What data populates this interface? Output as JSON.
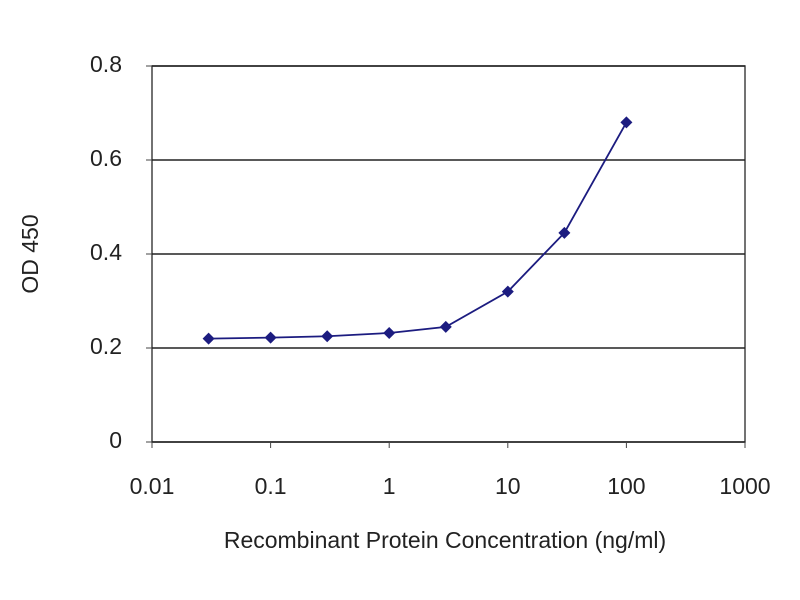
{
  "chart_data": {
    "type": "line",
    "xlabel": "Recombinant Protein Concentration (ng/ml)",
    "ylabel": "OD 450",
    "x": [
      0.03,
      0.1,
      0.3,
      1,
      3,
      10,
      30,
      100
    ],
    "series": [
      {
        "color": "#1c1c80",
        "values": [
          0.22,
          0.222,
          0.225,
          0.232,
          0.245,
          0.32,
          0.445,
          0.68
        ]
      }
    ],
    "xscale": "log",
    "xlim": [
      0.01,
      1000
    ],
    "xticks": [
      0.01,
      0.1,
      1,
      10,
      100,
      1000
    ],
    "ylim": [
      0,
      0.8
    ],
    "yticks": [
      0,
      0.2,
      0.4,
      0.6,
      0.8
    ],
    "grid": true
  }
}
